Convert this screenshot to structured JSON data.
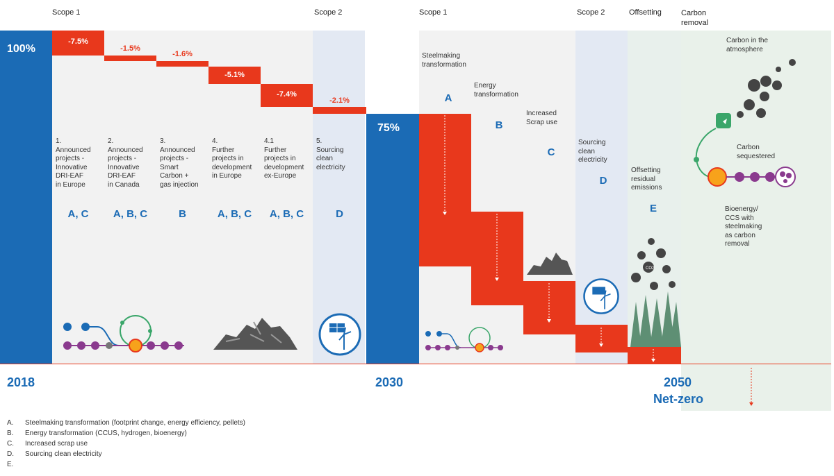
{
  "scope_labels": [
    "Scope 1",
    "Scope 2",
    "Scope 1",
    "Scope 2",
    "Offsetting",
    "Carbon removal"
  ],
  "start_value": "100%",
  "mid_value": "75%",
  "steps_2030": [
    {
      "pct": "-7.5%",
      "desc": "1.\nAnnounced\nprojects -\nInnovative\nDRI-EAF\nin Europe",
      "letters": "A, C"
    },
    {
      "pct": "-1.5%",
      "desc": "2.\nAnnounced\nprojects -\nInnovative\nDRI-EAF\nin Canada",
      "letters": "A, B, C"
    },
    {
      "pct": "-1.6%",
      "desc": "3.\nAnnounced\nprojects -\nSmart\nCarbon +\ngas injection",
      "letters": "B"
    },
    {
      "pct": "-5.1%",
      "desc": "4.\nFurther\nprojects in\ndevelopment\nin Europe",
      "letters": "A, B, C"
    },
    {
      "pct": "-7.4%",
      "desc": "4.1\nFurther\nprojects in\ndevelopment\nex-Europe",
      "letters": "A, B, C"
    },
    {
      "pct": "-2.1%",
      "desc": "5.\nSourcing\nclean\nelectricity",
      "letters": "D"
    }
  ],
  "steps_2050": [
    {
      "letter": "A",
      "desc": "Steelmaking\ntransformation"
    },
    {
      "letter": "B",
      "desc": "Energy\ntransformation"
    },
    {
      "letter": "C",
      "desc": "Increased\nScrap use"
    },
    {
      "letter": "D",
      "desc": "Sourcing\nclean\nelectricity"
    },
    {
      "letter": "E",
      "desc": "Offsetting\nresidual\nemissions"
    }
  ],
  "carbon_removal": {
    "atmosphere": "Carbon in the\natmosphere",
    "sequestered": "Carbon\nsequestered",
    "bioenergy": "Bioenergy/\nCCS with\nsteelmaking\nas carbon\nremoval"
  },
  "co2_label": "CO2",
  "years": {
    "y2018": "2018",
    "y2030": "2030",
    "y2050": "2050",
    "netzero": "Net-zero"
  },
  "legend": [
    {
      "key": "A.",
      "text": "Steelmaking transformation (footprint change, energy efficiency, pellets)"
    },
    {
      "key": "B.",
      "text": "Energy transformation (CCUS, hydrogen, bioenergy)"
    },
    {
      "key": "C.",
      "text": "Increased scrap use"
    },
    {
      "key": "D.",
      "text": "Sourcing clean electricity"
    },
    {
      "key": "E.",
      "text": ""
    }
  ],
  "colors": {
    "blue": "#1b6bb5",
    "red": "#e8381c",
    "panel": "#f2f2f2",
    "scope2": "#e3e9f3",
    "offset": "#e8f0ec",
    "removal": "#e9f1ea"
  }
}
